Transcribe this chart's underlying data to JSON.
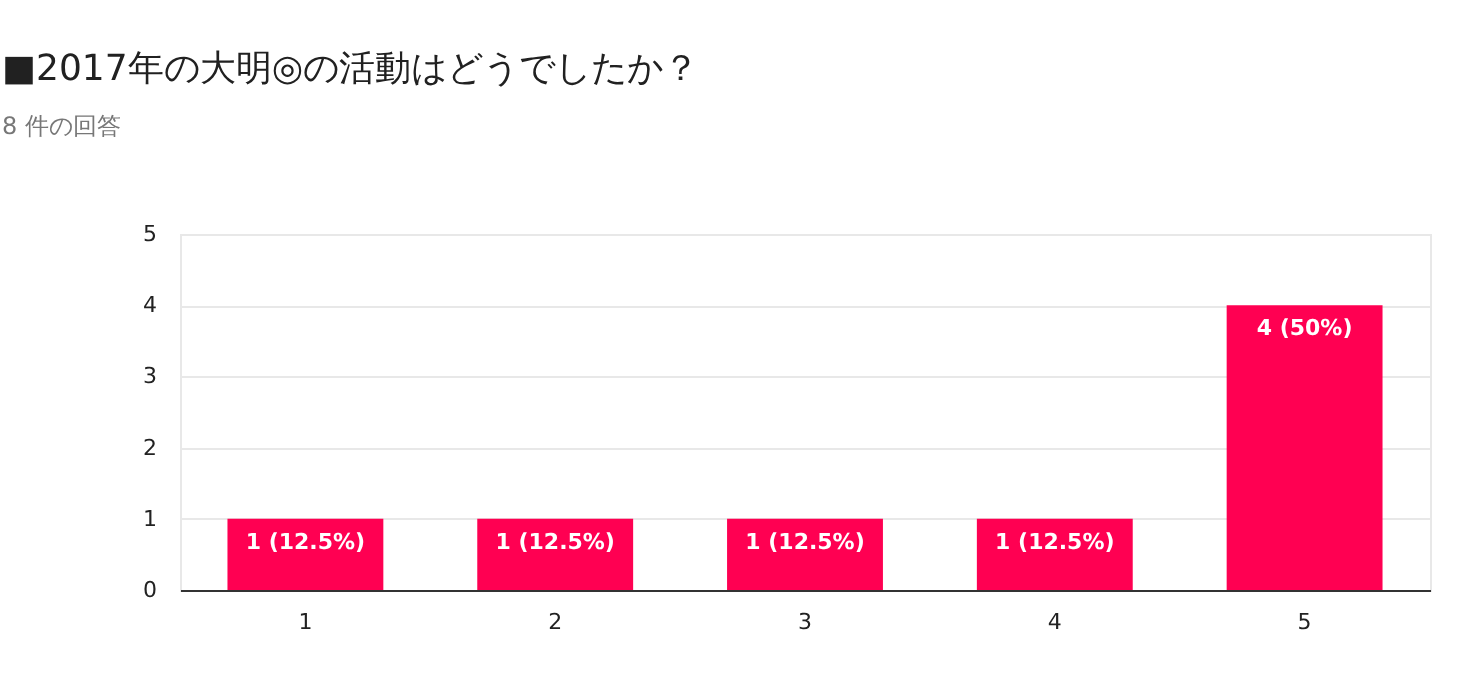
{
  "chart_data": {
    "type": "bar",
    "title": "■2017年の大明◎の活動はどうでしたか？",
    "subtitle": "8 件の回答",
    "categories": [
      "1",
      "2",
      "3",
      "4",
      "5"
    ],
    "values": [
      1,
      1,
      1,
      1,
      4
    ],
    "value_labels": [
      "1 (12.5%)",
      "1 (12.5%)",
      "1 (12.5%)",
      "1 (12.5%)",
      "4 (50%)"
    ],
    "color": "#ff0052",
    "ylim": [
      0,
      5
    ],
    "yticks": [
      0,
      1,
      2,
      3,
      4,
      5
    ],
    "grid": "y"
  }
}
